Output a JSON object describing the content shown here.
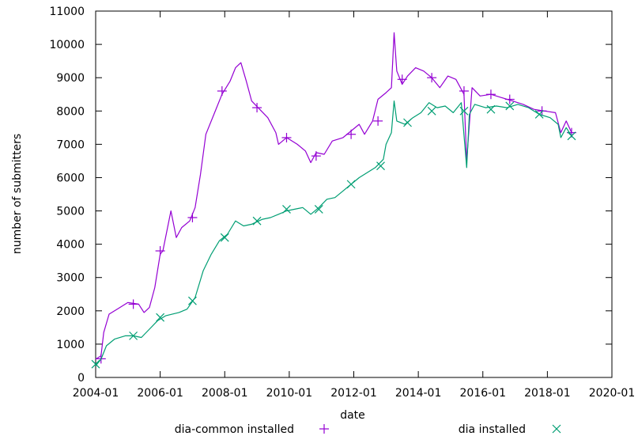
{
  "chart_data": {
    "type": "line",
    "title": "",
    "xlabel": "date",
    "ylabel": "number of submitters",
    "ylim": [
      0,
      11000
    ],
    "y_ticks": [
      0,
      1000,
      2000,
      3000,
      4000,
      5000,
      6000,
      7000,
      8000,
      9000,
      10000,
      11000
    ],
    "x_ticks": [
      "2004-01",
      "2006-01",
      "2008-01",
      "2010-01",
      "2012-01",
      "2014-01",
      "2016-01",
      "2018-01",
      "2020-01"
    ],
    "xlim": [
      "2004-01",
      "2020-01"
    ],
    "grid": false,
    "legend_position": "bottom",
    "series": [
      {
        "name": "dia-common installed",
        "color": "#9400d3",
        "marker": "plus",
        "points": [
          [
            "2004-01",
            550
          ],
          [
            "2004-03",
            650
          ],
          [
            "2004-04",
            1350
          ],
          [
            "2004-06",
            1900
          ],
          [
            "2004-09",
            2050
          ],
          [
            "2005-01",
            2250
          ],
          [
            "2005-05",
            2200
          ],
          [
            "2005-07",
            1950
          ],
          [
            "2005-09",
            2100
          ],
          [
            "2005-11",
            2700
          ],
          [
            "2006-01",
            3700
          ],
          [
            "2006-02",
            3800
          ],
          [
            "2006-04",
            4600
          ],
          [
            "2006-05",
            5000
          ],
          [
            "2006-07",
            4200
          ],
          [
            "2006-09",
            4500
          ],
          [
            "2006-12",
            4700
          ],
          [
            "2007-02",
            5100
          ],
          [
            "2007-04",
            6100
          ],
          [
            "2007-06",
            7300
          ],
          [
            "2007-09",
            7900
          ],
          [
            "2007-12",
            8500
          ],
          [
            "2008-03",
            8900
          ],
          [
            "2008-05",
            9300
          ],
          [
            "2008-07",
            9450
          ],
          [
            "2008-09",
            8900
          ],
          [
            "2008-11",
            8300
          ],
          [
            "2009-02",
            8050
          ],
          [
            "2009-05",
            7800
          ],
          [
            "2009-08",
            7350
          ],
          [
            "2009-09",
            7000
          ],
          [
            "2009-12",
            7200
          ],
          [
            "2010-04",
            7000
          ],
          [
            "2010-07",
            6800
          ],
          [
            "2010-09",
            6450
          ],
          [
            "2010-11",
            6750
          ],
          [
            "2011-02",
            6700
          ],
          [
            "2011-05",
            7100
          ],
          [
            "2011-09",
            7200
          ],
          [
            "2011-12",
            7400
          ],
          [
            "2012-03",
            7600
          ],
          [
            "2012-05",
            7300
          ],
          [
            "2012-08",
            7700
          ],
          [
            "2012-10",
            8350
          ],
          [
            "2013-01",
            8550
          ],
          [
            "2013-03",
            8700
          ],
          [
            "2013-04",
            10350
          ],
          [
            "2013-05",
            9200
          ],
          [
            "2013-07",
            8800
          ],
          [
            "2013-09",
            9050
          ],
          [
            "2013-12",
            9300
          ],
          [
            "2014-03",
            9200
          ],
          [
            "2014-06",
            9000
          ],
          [
            "2014-09",
            8700
          ],
          [
            "2014-12",
            9050
          ],
          [
            "2015-03",
            8950
          ],
          [
            "2015-06",
            8500
          ],
          [
            "2015-07",
            6500
          ],
          [
            "2015-09",
            8700
          ],
          [
            "2015-12",
            8450
          ],
          [
            "2016-04",
            8500
          ],
          [
            "2016-08",
            8400
          ],
          [
            "2016-12",
            8300
          ],
          [
            "2017-04",
            8200
          ],
          [
            "2017-08",
            8050
          ],
          [
            "2017-12",
            8000
          ],
          [
            "2018-04",
            7950
          ],
          [
            "2018-06",
            7350
          ],
          [
            "2018-08",
            7700
          ],
          [
            "2018-10",
            7350
          ]
        ],
        "marker_points": [
          [
            "2004-03",
            560
          ],
          [
            "2005-03",
            2200
          ],
          [
            "2006-01",
            3800
          ],
          [
            "2007-01",
            4800
          ],
          [
            "2007-12",
            8600
          ],
          [
            "2009-01",
            8100
          ],
          [
            "2009-12",
            7200
          ],
          [
            "2010-11",
            6650
          ],
          [
            "2011-12",
            7300
          ],
          [
            "2012-10",
            7700
          ],
          [
            "2013-07",
            8950
          ],
          [
            "2014-06",
            9000
          ],
          [
            "2015-06",
            8600
          ],
          [
            "2016-04",
            8500
          ],
          [
            "2016-11",
            8350
          ],
          [
            "2017-11",
            8000
          ],
          [
            "2018-10",
            7350
          ]
        ]
      },
      {
        "name": "dia installed",
        "color": "#009e73",
        "marker": "cross",
        "points": [
          [
            "2004-01",
            350
          ],
          [
            "2004-03",
            550
          ],
          [
            "2004-05",
            950
          ],
          [
            "2004-08",
            1150
          ],
          [
            "2004-12",
            1250
          ],
          [
            "2005-03",
            1250
          ],
          [
            "2005-06",
            1200
          ],
          [
            "2005-09",
            1450
          ],
          [
            "2005-12",
            1700
          ],
          [
            "2006-03",
            1850
          ],
          [
            "2006-08",
            1950
          ],
          [
            "2006-11",
            2050
          ],
          [
            "2007-02",
            2400
          ],
          [
            "2007-05",
            3200
          ],
          [
            "2007-08",
            3700
          ],
          [
            "2007-11",
            4100
          ],
          [
            "2008-02",
            4300
          ],
          [
            "2008-05",
            4700
          ],
          [
            "2008-08",
            4550
          ],
          [
            "2008-11",
            4600
          ],
          [
            "2009-03",
            4750
          ],
          [
            "2009-06",
            4800
          ],
          [
            "2009-09",
            4900
          ],
          [
            "2009-12",
            5000
          ],
          [
            "2010-03",
            5050
          ],
          [
            "2010-06",
            5100
          ],
          [
            "2010-09",
            4900
          ],
          [
            "2010-12",
            5100
          ],
          [
            "2011-03",
            5350
          ],
          [
            "2011-06",
            5400
          ],
          [
            "2011-09",
            5600
          ],
          [
            "2011-12",
            5800
          ],
          [
            "2012-03",
            6000
          ],
          [
            "2012-06",
            6150
          ],
          [
            "2012-09",
            6300
          ],
          [
            "2012-12",
            6550
          ],
          [
            "2013-01",
            7000
          ],
          [
            "2013-03",
            7350
          ],
          [
            "2013-04",
            8300
          ],
          [
            "2013-05",
            7700
          ],
          [
            "2013-08",
            7600
          ],
          [
            "2013-11",
            7800
          ],
          [
            "2014-02",
            7950
          ],
          [
            "2014-05",
            8250
          ],
          [
            "2014-08",
            8100
          ],
          [
            "2014-11",
            8150
          ],
          [
            "2015-02",
            7950
          ],
          [
            "2015-05",
            8250
          ],
          [
            "2015-07",
            6300
          ],
          [
            "2015-08",
            7900
          ],
          [
            "2015-10",
            8200
          ],
          [
            "2016-02",
            8100
          ],
          [
            "2016-06",
            8150
          ],
          [
            "2016-10",
            8100
          ],
          [
            "2017-02",
            8200
          ],
          [
            "2017-06",
            8100
          ],
          [
            "2017-10",
            7900
          ],
          [
            "2018-02",
            7800
          ],
          [
            "2018-05",
            7600
          ],
          [
            "2018-06",
            7200
          ],
          [
            "2018-08",
            7500
          ],
          [
            "2018-10",
            7250
          ]
        ],
        "marker_points": [
          [
            "2004-01",
            400
          ],
          [
            "2005-03",
            1250
          ],
          [
            "2006-01",
            1800
          ],
          [
            "2007-01",
            2300
          ],
          [
            "2008-01",
            4200
          ],
          [
            "2009-01",
            4700
          ],
          [
            "2009-12",
            5050
          ],
          [
            "2010-12",
            5050
          ],
          [
            "2011-12",
            5800
          ],
          [
            "2012-11",
            6350
          ],
          [
            "2013-09",
            7650
          ],
          [
            "2014-06",
            8000
          ],
          [
            "2015-06",
            8000
          ],
          [
            "2016-04",
            8050
          ],
          [
            "2016-11",
            8150
          ],
          [
            "2017-10",
            7900
          ],
          [
            "2018-10",
            7250
          ]
        ]
      }
    ]
  }
}
